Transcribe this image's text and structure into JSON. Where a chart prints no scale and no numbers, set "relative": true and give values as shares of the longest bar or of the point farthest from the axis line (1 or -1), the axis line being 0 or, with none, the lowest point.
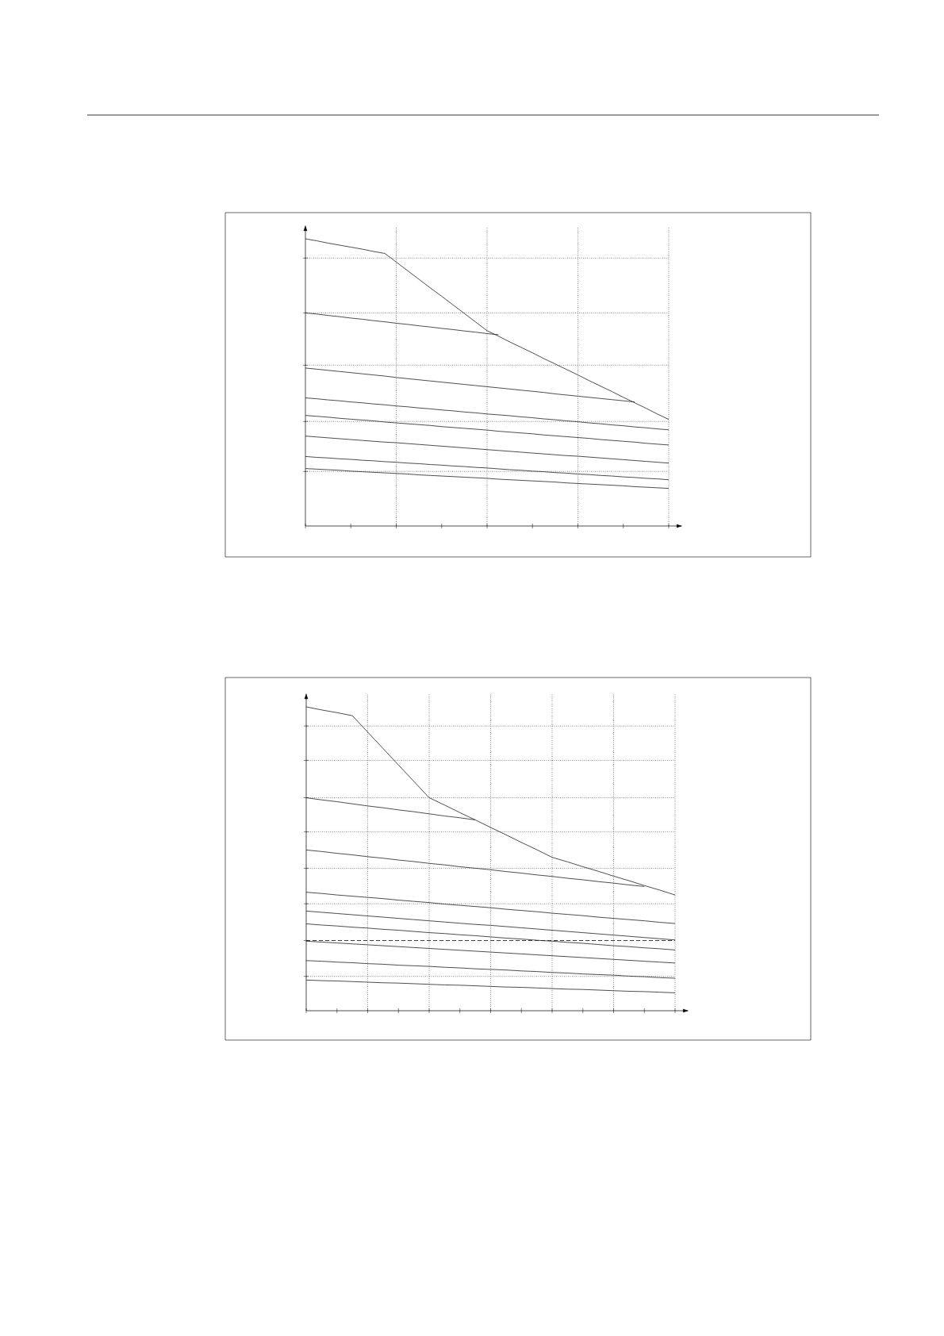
{
  "chart_data": [
    {
      "type": "line",
      "relative": true,
      "categories": [
        null,
        null,
        null,
        null,
        null,
        null,
        null,
        null,
        null,
        null,
        null,
        null,
        null,
        null,
        null,
        null,
        null,
        null,
        null,
        null,
        null,
        null,
        null,
        null,
        null,
        null,
        null,
        null,
        null,
        null,
        null,
        null,
        null
      ],
      "marker": "none",
      "line_style": "solid",
      "grid": "x",
      "series": [
        {
          "color": "#231f20",
          "values": [
            1.0,
            0.993,
            0.985,
            0.978,
            0.971,
            0.964,
            0.956,
            0.949,
            0.919,
            0.889,
            0.859,
            0.829,
            0.8,
            0.77,
            0.74,
            0.71,
            0.68,
            0.661,
            0.641,
            0.622,
            0.603,
            0.583,
            0.564,
            0.545,
            0.526,
            0.506,
            0.487,
            0.468,
            0.448,
            0.429,
            0.41,
            0.39,
            0.371
          ]
        },
        {
          "color": "#231f20",
          "values": [
            0.742,
            0.738,
            0.733,
            0.729,
            0.724,
            0.72,
            0.715,
            0.711,
            0.706,
            0.702,
            0.697,
            0.693,
            0.688,
            0.684,
            0.679,
            0.675,
            0.67,
            0.666,
            null,
            null,
            null,
            null,
            null,
            null,
            null,
            null,
            null,
            null,
            null,
            null,
            null,
            null,
            null
          ]
        },
        {
          "color": "#231f20",
          "values": [
            0.55,
            0.546,
            0.542,
            0.538,
            0.534,
            0.53,
            0.526,
            0.522,
            0.517,
            0.513,
            0.509,
            0.505,
            0.501,
            0.497,
            0.493,
            0.489,
            0.485,
            0.481,
            0.477,
            0.473,
            0.469,
            0.465,
            0.46,
            0.456,
            0.452,
            0.448,
            0.444,
            0.44,
            0.436,
            0.432,
            null,
            null,
            null
          ]
        },
        {
          "color": "#231f20",
          "values": [
            0.446,
            0.443,
            0.439,
            0.436,
            0.432,
            0.429,
            0.425,
            0.422,
            0.418,
            0.415,
            0.411,
            0.408,
            0.404,
            0.401,
            0.397,
            0.394,
            0.39,
            0.387,
            0.384,
            0.38,
            0.377,
            0.373,
            0.37,
            0.366,
            0.363,
            0.359,
            0.356,
            0.352,
            0.349,
            0.345,
            0.342,
            0.338,
            0.335
          ]
        },
        {
          "color": "#231f20",
          "values": [
            0.385,
            0.382,
            0.379,
            0.375,
            0.372,
            0.369,
            0.366,
            0.362,
            0.359,
            0.356,
            0.353,
            0.35,
            0.346,
            0.343,
            0.34,
            0.337,
            0.334,
            0.33,
            0.327,
            0.324,
            0.321,
            0.317,
            0.314,
            0.311,
            0.308,
            0.305,
            0.301,
            0.298,
            0.295,
            0.292,
            0.288,
            0.285,
            0.282
          ]
        },
        {
          "color": "#231f20",
          "values": [
            0.313,
            0.31,
            0.307,
            0.304,
            0.301,
            0.298,
            0.295,
            0.292,
            0.29,
            0.287,
            0.284,
            0.281,
            0.278,
            0.275,
            0.272,
            0.269,
            0.266,
            0.263,
            0.26,
            0.257,
            0.254,
            0.251,
            0.248,
            0.245,
            0.243,
            0.24,
            0.237,
            0.234,
            0.231,
            0.228,
            0.225,
            0.222,
            0.219
          ]
        },
        {
          "color": "#231f20",
          "values": [
            0.242,
            0.239,
            0.237,
            0.234,
            0.232,
            0.229,
            0.227,
            0.224,
            0.222,
            0.219,
            0.217,
            0.214,
            0.212,
            0.209,
            0.207,
            0.204,
            0.202,
            0.199,
            0.196,
            0.194,
            0.191,
            0.189,
            0.186,
            0.184,
            0.181,
            0.179,
            0.176,
            0.174,
            0.171,
            0.169,
            0.166,
            0.164,
            0.161
          ]
        },
        {
          "color": "#231f20",
          "values": [
            0.2,
            0.198,
            0.196,
            0.194,
            0.191,
            0.189,
            0.187,
            0.185,
            0.183,
            0.181,
            0.178,
            0.176,
            0.174,
            0.172,
            0.17,
            0.168,
            0.166,
            0.163,
            0.161,
            0.159,
            0.157,
            0.155,
            0.153,
            0.15,
            0.148,
            0.146,
            0.144,
            0.142,
            0.14,
            0.137,
            0.135,
            0.133,
            0.131
          ]
        }
      ],
      "ref_lines": [
        {
          "axis": "y",
          "value": 0.933,
          "line_style": "dotted"
        },
        {
          "axis": "y",
          "value": 0.742,
          "line_style": "dotted"
        },
        {
          "axis": "y",
          "value": 0.56,
          "line_style": "dotted"
        },
        {
          "axis": "y",
          "value": 0.364,
          "line_style": "dotted"
        },
        {
          "axis": "y",
          "value": 0.19,
          "line_style": "dotted"
        }
      ]
    },
    {
      "type": "line",
      "relative": true,
      "categories": [
        null,
        null,
        null,
        null,
        null,
        null,
        null,
        null,
        null,
        null,
        null,
        null,
        null,
        null,
        null,
        null,
        null,
        null,
        null,
        null,
        null,
        null,
        null,
        null,
        null
      ],
      "marker": "none",
      "line_style": "solid",
      "grid": "x",
      "series": [
        {
          "color": "#231f20",
          "values": [
            1.0,
            0.99,
            0.981,
            0.971,
            0.917,
            0.863,
            0.809,
            0.755,
            0.701,
            0.677,
            0.652,
            0.628,
            0.603,
            0.579,
            0.554,
            0.53,
            0.505,
            0.49,
            0.474,
            0.459,
            0.443,
            0.428,
            0.412,
            0.397,
            0.381
          ]
        },
        {
          "color": "#231f20",
          "values": [
            0.701,
            0.694,
            0.688,
            0.681,
            0.674,
            0.668,
            0.661,
            0.655,
            0.648,
            0.641,
            0.635,
            0.628,
            null,
            null,
            null,
            null,
            null,
            null,
            null,
            null,
            null,
            null,
            null,
            null,
            null
          ]
        },
        {
          "color": "#231f20",
          "values": [
            0.529,
            0.524,
            0.518,
            0.513,
            0.507,
            0.502,
            0.496,
            0.491,
            0.485,
            0.48,
            0.474,
            0.469,
            0.464,
            0.458,
            0.453,
            0.447,
            0.442,
            0.436,
            0.431,
            0.425,
            0.42,
            0.414,
            0.409,
            null,
            null
          ]
        },
        {
          "color": "#231f20",
          "values": [
            0.39,
            0.386,
            0.381,
            0.377,
            0.373,
            0.369,
            0.364,
            0.36,
            0.356,
            0.351,
            0.347,
            0.343,
            0.339,
            0.334,
            0.33,
            0.326,
            0.321,
            0.317,
            0.313,
            0.308,
            0.304,
            0.3,
            0.296,
            0.291,
            0.287
          ]
        },
        {
          "color": "#231f20",
          "values": [
            0.328,
            0.324,
            0.32,
            0.316,
            0.312,
            0.308,
            0.304,
            0.3,
            0.296,
            0.292,
            0.288,
            0.284,
            0.281,
            0.277,
            0.273,
            0.269,
            0.265,
            0.261,
            0.257,
            0.253,
            0.249,
            0.245,
            0.241,
            0.237,
            0.233
          ]
        },
        {
          "color": "#231f20",
          "values": [
            0.286,
            0.282,
            0.279,
            0.275,
            0.272,
            0.268,
            0.265,
            0.261,
            0.257,
            0.254,
            0.25,
            0.247,
            0.243,
            0.239,
            0.236,
            0.232,
            0.229,
            0.225,
            0.222,
            0.218,
            0.214,
            0.211,
            0.207,
            0.204,
            0.2
          ]
        },
        {
          "color": "#231f20",
          "values": [
            0.229,
            0.226,
            0.223,
            0.22,
            0.217,
            0.214,
            0.211,
            0.208,
            0.205,
            0.202,
            0.199,
            0.196,
            0.193,
            0.19,
            0.187,
            0.184,
            0.181,
            0.178,
            0.175,
            0.172,
            0.169,
            0.166,
            0.163,
            0.16,
            0.157
          ]
        },
        {
          "color": "#231f20",
          "values": [
            0.165,
            0.163,
            0.16,
            0.158,
            0.155,
            0.153,
            0.15,
            0.148,
            0.146,
            0.143,
            0.141,
            0.138,
            0.136,
            0.134,
            0.131,
            0.129,
            0.126,
            0.124,
            0.121,
            0.119,
            0.117,
            0.114,
            0.112,
            0.109,
            0.107
          ]
        },
        {
          "color": "#231f20",
          "values": [
            0.101,
            0.099,
            0.098,
            0.096,
            0.094,
            0.092,
            0.091,
            0.089,
            0.087,
            0.085,
            0.084,
            0.082,
            0.08,
            0.078,
            0.077,
            0.075,
            0.073,
            0.071,
            0.07,
            0.068,
            0.066,
            0.064,
            0.063,
            0.061,
            0.059
          ]
        }
      ],
      "ref_lines": [
        {
          "axis": "y",
          "value": 0.937,
          "line_style": "dotted"
        },
        {
          "axis": "y",
          "value": 0.824,
          "line_style": "dotted"
        },
        {
          "axis": "y",
          "value": 0.701,
          "line_style": "dotted"
        },
        {
          "axis": "y",
          "value": 0.589,
          "line_style": "dotted"
        },
        {
          "axis": "y",
          "value": 0.469,
          "line_style": "dotted"
        },
        {
          "axis": "y",
          "value": 0.352,
          "line_style": "dotted"
        },
        {
          "axis": "y",
          "value": 0.113,
          "line_style": "dotted"
        },
        {
          "axis": "y",
          "value": 0.231,
          "line_style": "dashed",
          "color": "#231f20"
        }
      ]
    }
  ]
}
